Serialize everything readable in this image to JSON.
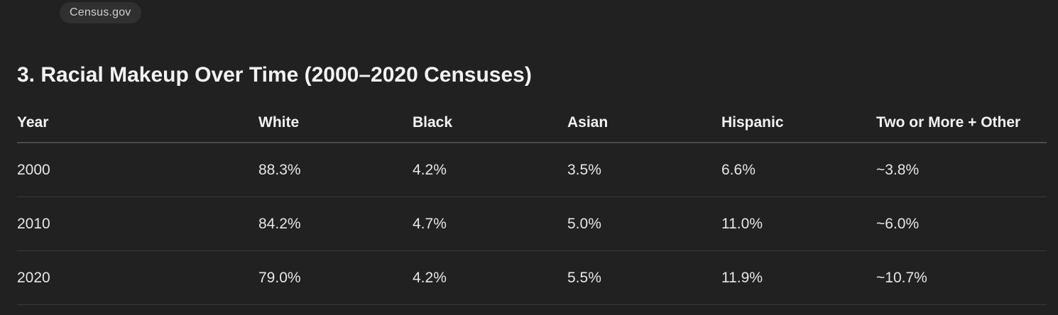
{
  "source": {
    "label": "Census.gov"
  },
  "section": {
    "heading": "3. Racial Makeup Over Time (2000–2020 Censuses)"
  },
  "table": {
    "headers": [
      "Year",
      "White",
      "Black",
      "Asian",
      "Hispanic",
      "Two or More + Other"
    ],
    "rows": [
      [
        "2000",
        "88.3%",
        "4.2%",
        "3.5%",
        "6.6%",
        "~3.8%"
      ],
      [
        "2010",
        "84.2%",
        "4.7%",
        "5.0%",
        "11.0%",
        "~6.0%"
      ],
      [
        "2020",
        "79.0%",
        "4.2%",
        "5.5%",
        "11.9%",
        "~10.7%"
      ]
    ]
  }
}
